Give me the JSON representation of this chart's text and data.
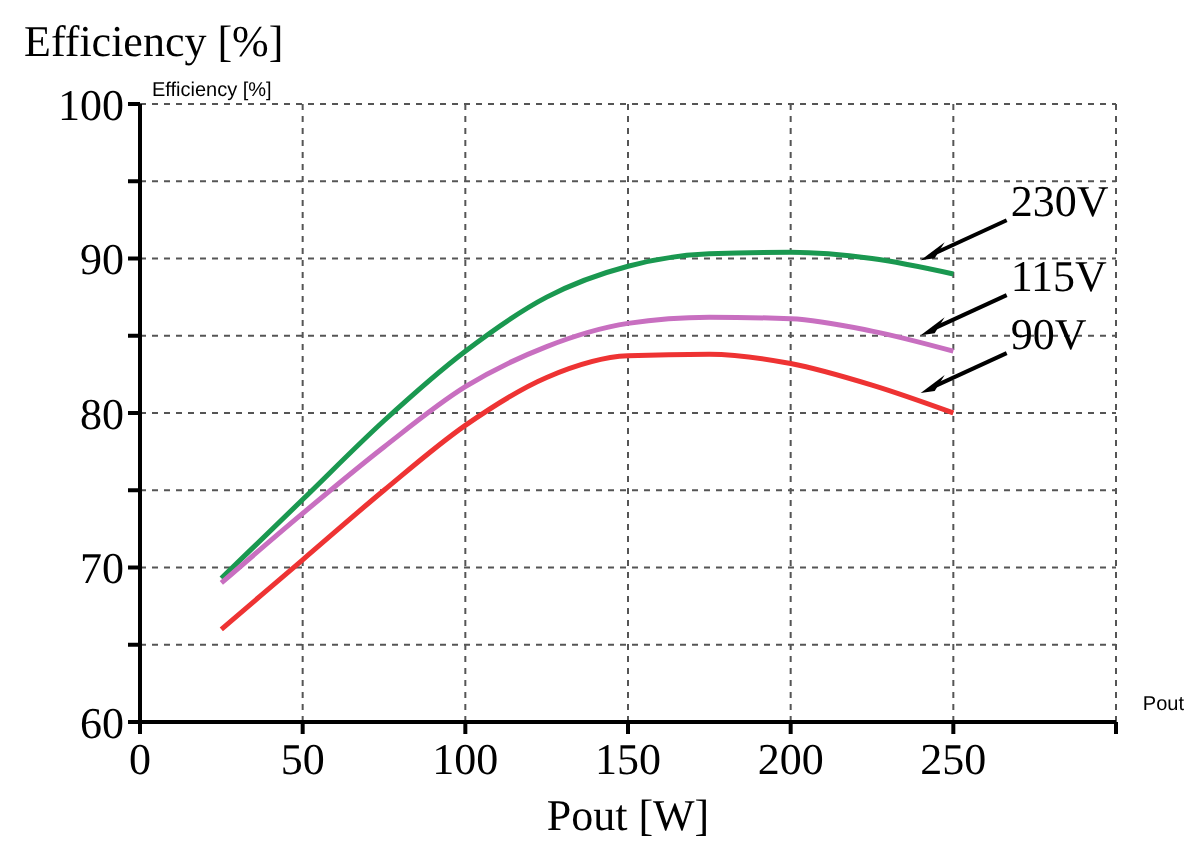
{
  "chart_data": {
    "type": "line",
    "ylabel": "Efficiency [%]",
    "xlabel": "Pout [W]",
    "annotations": [
      "Efficiency [%]",
      "Pout"
    ],
    "x": [
      25,
      50,
      75,
      100,
      125,
      150,
      175,
      200,
      225,
      250
    ],
    "series": [
      {
        "name": "230V",
        "color": "#1a9850",
        "values": [
          69.3,
          74.4,
          79.5,
          84,
          87.5,
          89.5,
          90.3,
          90.4,
          90,
          89
        ]
      },
      {
        "name": "115V",
        "color": "#c86fc0",
        "values": [
          69,
          73.5,
          77.8,
          81.7,
          84.3,
          85.8,
          86.2,
          86.1,
          85.3,
          84
        ]
      },
      {
        "name": "90V",
        "color": "#ee3333",
        "values": [
          66,
          70.5,
          75,
          79.2,
          82.3,
          83.7,
          83.8,
          83.2,
          81.8,
          80
        ]
      }
    ],
    "xlim": [
      0,
      300
    ],
    "xticks": [
      0,
      50,
      100,
      150,
      200,
      250,
      {
        "value": 300,
        "label": null
      }
    ],
    "ylim": [
      60,
      100
    ],
    "yticks": [
      60,
      {
        "value": 65,
        "label": null
      },
      70,
      {
        "value": 75,
        "label": null
      },
      80,
      {
        "value": 85,
        "label": null
      },
      90,
      {
        "value": 95,
        "label": null
      },
      100
    ],
    "grid": true,
    "legend": false,
    "marker": "none",
    "line_style": "solid"
  }
}
